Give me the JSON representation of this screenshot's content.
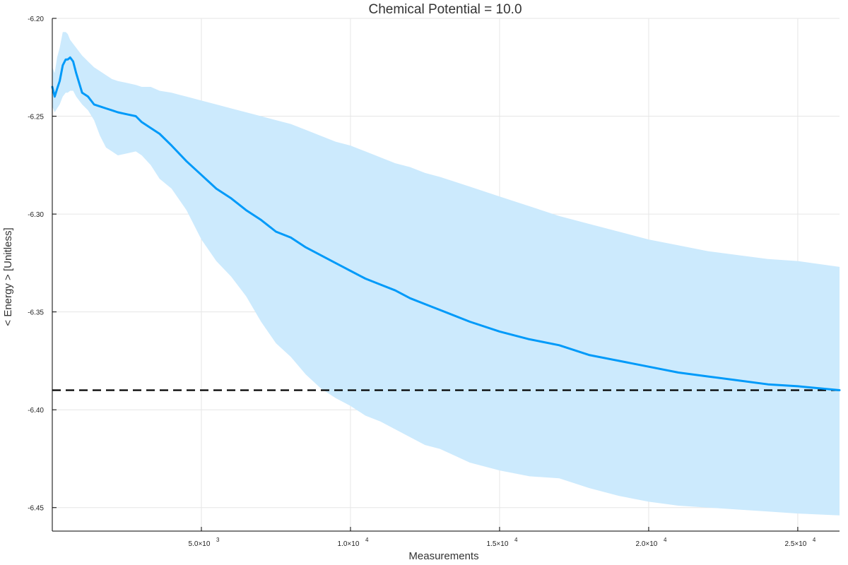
{
  "chart_data": {
    "type": "line",
    "title": "Chemical Potential = 10.0",
    "xlabel": "Measurements",
    "ylabel": "< Energy > [Unitless]",
    "xlim": [
      0,
      26400
    ],
    "ylim": [
      -6.462,
      -6.2
    ],
    "grid": true,
    "legend": "none",
    "x_ticks": [
      {
        "value": 5000,
        "mantissa": "5.0×10",
        "exponent": "3"
      },
      {
        "value": 10000,
        "mantissa": "1.0×10",
        "exponent": "4"
      },
      {
        "value": 15000,
        "mantissa": "1.5×10",
        "exponent": "4"
      },
      {
        "value": 20000,
        "mantissa": "2.0×10",
        "exponent": "4"
      },
      {
        "value": 25000,
        "mantissa": "2.5×10",
        "exponent": "4"
      }
    ],
    "y_ticks": [
      {
        "value": -6.2,
        "label": "-6.20"
      },
      {
        "value": -6.25,
        "label": "-6.25"
      },
      {
        "value": -6.3,
        "label": "-6.30"
      },
      {
        "value": -6.35,
        "label": "-6.35"
      },
      {
        "value": -6.4,
        "label": "-6.40"
      },
      {
        "value": -6.45,
        "label": "-6.45"
      }
    ],
    "reference_line": {
      "y": -6.39,
      "style": "dashed",
      "color": "#000000"
    },
    "series": [
      {
        "color": "#009AF9",
        "band_color": "#CCEAFD",
        "x": [
          0,
          80,
          160,
          250,
          350,
          450,
          520,
          600,
          700,
          800,
          1000,
          1200,
          1400,
          1600,
          1800,
          2000,
          2200,
          2500,
          2800,
          3000,
          3300,
          3600,
          4000,
          4500,
          5000,
          5500,
          6000,
          6500,
          7000,
          7500,
          8000,
          8500,
          9000,
          9500,
          10000,
          10500,
          11000,
          11500,
          12000,
          12500,
          13000,
          14000,
          15000,
          16000,
          17000,
          18000,
          19000,
          20000,
          21000,
          22000,
          23000,
          24000,
          25000,
          26400
        ],
        "y": [
          -6.235,
          -6.24,
          -6.236,
          -6.232,
          -6.224,
          -6.221,
          -6.221,
          -6.22,
          -6.222,
          -6.228,
          -6.238,
          -6.24,
          -6.244,
          -6.245,
          -6.246,
          -6.247,
          -6.248,
          -6.249,
          -6.25,
          -6.253,
          -6.256,
          -6.259,
          -6.265,
          -6.273,
          -6.28,
          -6.287,
          -6.292,
          -6.298,
          -6.303,
          -6.309,
          -6.312,
          -6.317,
          -6.321,
          -6.325,
          -6.329,
          -6.333,
          -6.336,
          -6.339,
          -6.343,
          -6.346,
          -6.349,
          -6.355,
          -6.36,
          -6.364,
          -6.367,
          -6.372,
          -6.375,
          -6.378,
          -6.381,
          -6.383,
          -6.385,
          -6.387,
          -6.388,
          -6.39
        ],
        "upper": [
          -6.225,
          -6.228,
          -6.22,
          -6.215,
          -6.207,
          -6.207,
          -6.208,
          -6.211,
          -6.213,
          -6.215,
          -6.219,
          -6.222,
          -6.225,
          -6.227,
          -6.229,
          -6.231,
          -6.232,
          -6.233,
          -6.234,
          -6.235,
          -6.235,
          -6.237,
          -6.238,
          -6.24,
          -6.242,
          -6.244,
          -6.246,
          -6.248,
          -6.25,
          -6.252,
          -6.254,
          -6.257,
          -6.26,
          -6.263,
          -6.265,
          -6.268,
          -6.271,
          -6.274,
          -6.276,
          -6.279,
          -6.281,
          -6.286,
          -6.291,
          -6.296,
          -6.301,
          -6.305,
          -6.309,
          -6.313,
          -6.316,
          -6.319,
          -6.321,
          -6.323,
          -6.324,
          -6.327
        ],
        "lower": [
          -6.245,
          -6.248,
          -6.246,
          -6.244,
          -6.24,
          -6.238,
          -6.238,
          -6.237,
          -6.237,
          -6.24,
          -6.244,
          -6.247,
          -6.252,
          -6.26,
          -6.266,
          -6.268,
          -6.27,
          -6.269,
          -6.268,
          -6.27,
          -6.275,
          -6.282,
          -6.287,
          -6.298,
          -6.313,
          -6.324,
          -6.332,
          -6.342,
          -6.355,
          -6.366,
          -6.373,
          -6.382,
          -6.389,
          -6.394,
          -6.398,
          -6.403,
          -6.406,
          -6.41,
          -6.414,
          -6.418,
          -6.42,
          -6.427,
          -6.431,
          -6.434,
          -6.435,
          -6.44,
          -6.444,
          -6.447,
          -6.449,
          -6.45,
          -6.451,
          -6.452,
          -6.453,
          -6.454
        ]
      }
    ]
  }
}
